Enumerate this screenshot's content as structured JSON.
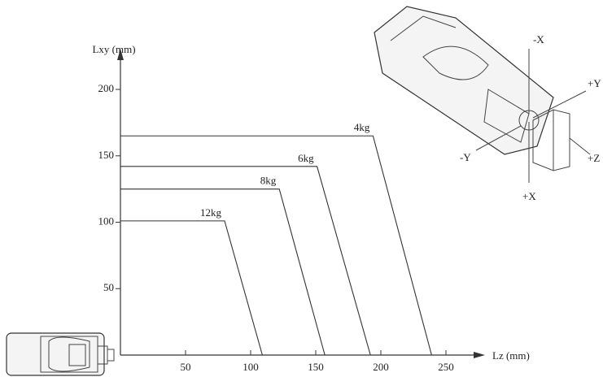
{
  "chart_data": {
    "type": "line",
    "x_label": "Lz (mm)",
    "y_label": "Lxy (mm)",
    "xlim": [
      0,
      275
    ],
    "ylim": [
      0,
      230
    ],
    "xticks": [
      50,
      100,
      150,
      200,
      250
    ],
    "yticks": [
      50,
      100,
      150,
      200
    ],
    "series": [
      {
        "name": "4kg",
        "color": "#333333",
        "x": [
          0,
          194,
          239
        ],
        "values": [
          165,
          165,
          0
        ]
      },
      {
        "name": "6kg",
        "color": "#333333",
        "x": [
          0,
          151,
          192
        ],
        "values": [
          142,
          142,
          0
        ]
      },
      {
        "name": "8kg",
        "color": "#333333",
        "x": [
          0,
          122,
          157
        ],
        "values": [
          125,
          125,
          0
        ]
      },
      {
        "name": "12kg",
        "color": "#333333",
        "x": [
          0,
          80,
          109
        ],
        "values": [
          101,
          101,
          0
        ]
      }
    ],
    "annotations": [
      "-X",
      "+Y",
      "-Y",
      "+Z",
      "+X"
    ]
  }
}
